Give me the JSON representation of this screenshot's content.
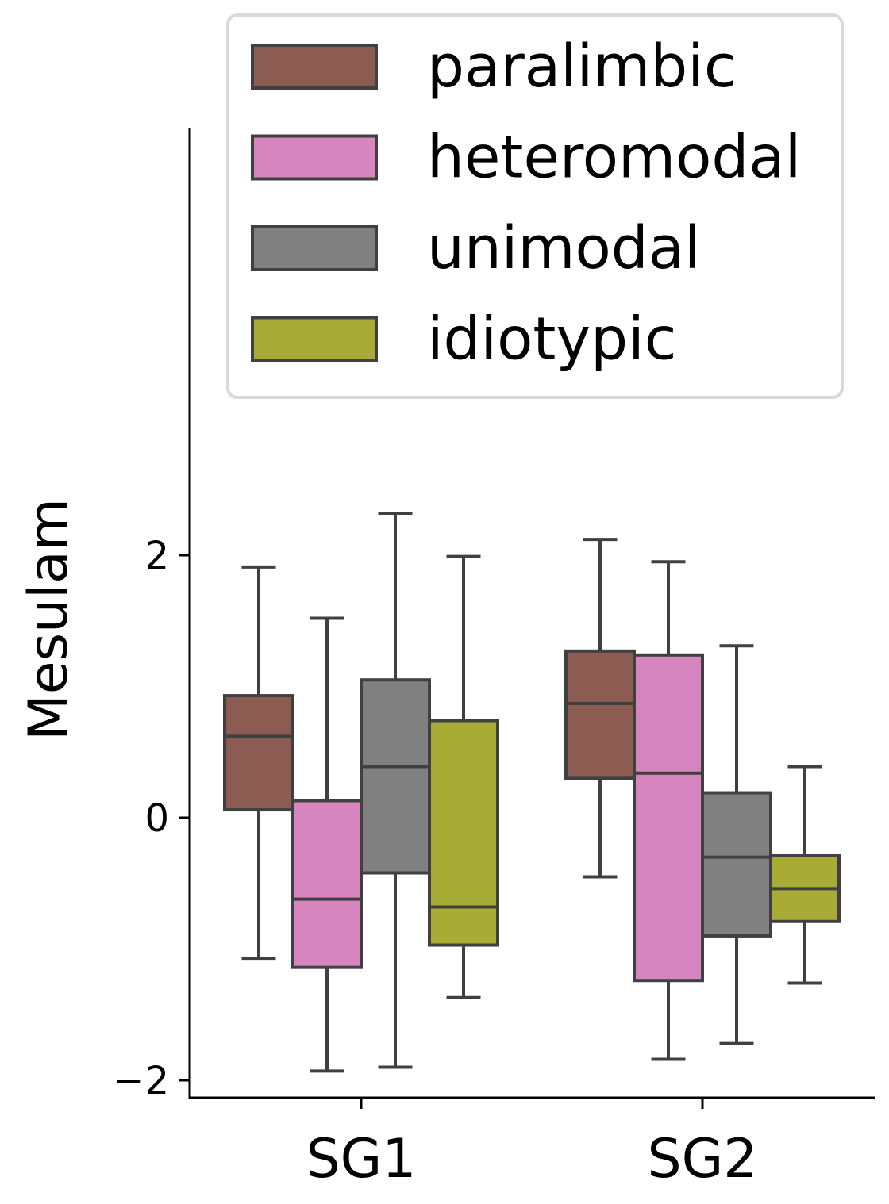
{
  "chart_data": {
    "type": "box",
    "ylabel": "Mesulam",
    "categories": [
      "SG1",
      "SG2"
    ],
    "y_ticks": [
      -2,
      0,
      2
    ],
    "y_tick_labels": [
      "−2",
      "0",
      "2"
    ],
    "ylim": [
      -2.13,
      5.27
    ],
    "legend_position": "top",
    "series": [
      {
        "name": "paralimbic",
        "color": "#8c5c53",
        "boxes": [
          {
            "category": "SG1",
            "whislo": -1.07,
            "q1": 0.06,
            "median": 0.62,
            "q3": 0.93,
            "whishi": 1.91
          },
          {
            "category": "SG2",
            "whislo": -0.45,
            "q1": 0.3,
            "median": 0.87,
            "q3": 1.27,
            "whishi": 2.12
          }
        ]
      },
      {
        "name": "heteromodal",
        "color": "#d685bf",
        "boxes": [
          {
            "category": "SG1",
            "whislo": -1.93,
            "q1": -1.14,
            "median": -0.62,
            "q3": 0.13,
            "whishi": 1.52
          },
          {
            "category": "SG2",
            "whislo": -1.84,
            "q1": -1.24,
            "median": 0.34,
            "q3": 1.24,
            "whishi": 1.95
          }
        ]
      },
      {
        "name": "unimodal",
        "color": "#808080",
        "boxes": [
          {
            "category": "SG1",
            "whislo": -1.9,
            "q1": -0.42,
            "median": 0.39,
            "q3": 1.05,
            "whishi": 2.32
          },
          {
            "category": "SG2",
            "whislo": -1.72,
            "q1": -0.9,
            "median": -0.3,
            "q3": 0.19,
            "whishi": 1.31
          }
        ]
      },
      {
        "name": "idiotypic",
        "color": "#a8ab35",
        "boxes": [
          {
            "category": "SG1",
            "whislo": -1.37,
            "q1": -0.97,
            "median": -0.68,
            "q3": 0.74,
            "whishi": 1.99
          },
          {
            "category": "SG2",
            "whislo": -1.26,
            "q1": -0.79,
            "median": -0.54,
            "q3": -0.29,
            "whishi": 0.39
          }
        ]
      }
    ]
  }
}
